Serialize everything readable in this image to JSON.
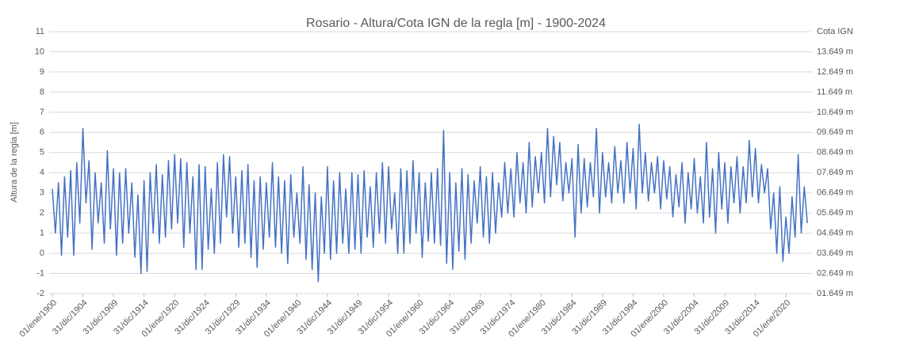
{
  "chart_data": {
    "type": "line",
    "title": "Rosario - Altura/Cota IGN de la regla [m] - 1900-2024",
    "ylabel": "Altura de la regla [m]",
    "y2label": "Cota IGN",
    "color": "#4472c4",
    "grid": true,
    "xlim": [
      1900,
      2024
    ],
    "xticks": [
      {
        "value": 1900,
        "label": "01/ene/1900"
      },
      {
        "value": 1905,
        "label": "31/dic/1904"
      },
      {
        "value": 1910,
        "label": "31/dic/1909"
      },
      {
        "value": 1915,
        "label": "31/dic/1914"
      },
      {
        "value": 1920,
        "label": "01/ene/1920"
      },
      {
        "value": 1925,
        "label": "31/dic/1924"
      },
      {
        "value": 1930,
        "label": "31/dic/1929"
      },
      {
        "value": 1935,
        "label": "31/dic/1934"
      },
      {
        "value": 1940,
        "label": "01/ene/1940"
      },
      {
        "value": 1945,
        "label": "31/dic/1944"
      },
      {
        "value": 1950,
        "label": "31/dic/1949"
      },
      {
        "value": 1955,
        "label": "31/dic/1954"
      },
      {
        "value": 1960,
        "label": "01/ene/1960"
      },
      {
        "value": 1965,
        "label": "31/dic/1964"
      },
      {
        "value": 1970,
        "label": "31/dic/1969"
      },
      {
        "value": 1975,
        "label": "31/dic/1974"
      },
      {
        "value": 1980,
        "label": "01/ene/1980"
      },
      {
        "value": 1985,
        "label": "31/dic/1984"
      },
      {
        "value": 1990,
        "label": "31/dic/1989"
      },
      {
        "value": 1995,
        "label": "31/dic/1994"
      },
      {
        "value": 2000,
        "label": "01/ene/2000"
      },
      {
        "value": 2005,
        "label": "31/dic/2004"
      },
      {
        "value": 2010,
        "label": "31/dic/2009"
      },
      {
        "value": 2015,
        "label": "31/dic/2014"
      },
      {
        "value": 2020,
        "label": "01/ene/2020"
      }
    ],
    "ylim": [
      -2,
      11
    ],
    "yticks": [
      -2,
      -1,
      0,
      1,
      2,
      3,
      4,
      5,
      6,
      7,
      8,
      9,
      10,
      11
    ],
    "y2lim": [
      1.649,
      14.649
    ],
    "y2ticks": [
      {
        "value": 1.649,
        "label": "01.649 m"
      },
      {
        "value": 2.649,
        "label": "02.649 m"
      },
      {
        "value": 3.649,
        "label": "03.649 m"
      },
      {
        "value": 4.649,
        "label": "04.649 m"
      },
      {
        "value": 5.649,
        "label": "05.649 m"
      },
      {
        "value": 6.649,
        "label": "06.649 m"
      },
      {
        "value": 7.649,
        "label": "07.649 m"
      },
      {
        "value": 8.649,
        "label": "08.649 m"
      },
      {
        "value": 9.649,
        "label": "09.649 m"
      },
      {
        "value": 10.649,
        "label": "10.649 m"
      },
      {
        "value": 11.649,
        "label": "11.649 m"
      },
      {
        "value": 12.649,
        "label": "12.649 m"
      },
      {
        "value": 13.649,
        "label": "13.649 m"
      }
    ],
    "x": [
      1900,
      1900.5,
      1901,
      1901.5,
      1902,
      1902.5,
      1903,
      1903.5,
      1904,
      1904.5,
      1905,
      1905.5,
      1906,
      1906.5,
      1907,
      1907.5,
      1908,
      1908.5,
      1909,
      1909.5,
      1910,
      1910.5,
      1911,
      1911.5,
      1912,
      1912.5,
      1913,
      1913.5,
      1914,
      1914.5,
      1915,
      1915.5,
      1916,
      1916.5,
      1917,
      1917.5,
      1918,
      1918.5,
      1919,
      1919.5,
      1920,
      1920.5,
      1921,
      1921.5,
      1922,
      1922.5,
      1923,
      1923.5,
      1924,
      1924.5,
      1925,
      1925.5,
      1926,
      1926.5,
      1927,
      1927.5,
      1928,
      1928.5,
      1929,
      1929.5,
      1930,
      1930.5,
      1931,
      1931.5,
      1932,
      1932.5,
      1933,
      1933.5,
      1934,
      1934.5,
      1935,
      1935.5,
      1936,
      1936.5,
      1937,
      1937.5,
      1938,
      1938.5,
      1939,
      1939.5,
      1940,
      1940.5,
      1941,
      1941.5,
      1942,
      1942.5,
      1943,
      1943.5,
      1944,
      1944.5,
      1945,
      1945.5,
      1946,
      1946.5,
      1947,
      1947.5,
      1948,
      1948.5,
      1949,
      1949.5,
      1950,
      1950.5,
      1951,
      1951.5,
      1952,
      1952.5,
      1953,
      1953.5,
      1954,
      1954.5,
      1955,
      1955.5,
      1956,
      1956.5,
      1957,
      1957.5,
      1958,
      1958.5,
      1959,
      1959.5,
      1960,
      1960.5,
      1961,
      1961.5,
      1962,
      1962.5,
      1963,
      1963.5,
      1964,
      1964.5,
      1965,
      1965.5,
      1966,
      1966.5,
      1967,
      1967.5,
      1968,
      1968.5,
      1969,
      1969.5,
      1970,
      1970.5,
      1971,
      1971.5,
      1972,
      1972.5,
      1973,
      1973.5,
      1974,
      1974.5,
      1975,
      1975.5,
      1976,
      1976.5,
      1977,
      1977.5,
      1978,
      1978.5,
      1979,
      1979.5,
      1980,
      1980.5,
      1981,
      1981.5,
      1982,
      1982.5,
      1983,
      1983.5,
      1984,
      1984.5,
      1985,
      1985.5,
      1986,
      1986.5,
      1987,
      1987.5,
      1988,
      1988.5,
      1989,
      1989.5,
      1990,
      1990.5,
      1991,
      1991.5,
      1992,
      1992.5,
      1993,
      1993.5,
      1994,
      1994.5,
      1995,
      1995.5,
      1996,
      1996.5,
      1997,
      1997.5,
      1998,
      1998.5,
      1999,
      1999.5,
      2000,
      2000.5,
      2001,
      2001.5,
      2002,
      2002.5,
      2003,
      2003.5,
      2004,
      2004.5,
      2005,
      2005.5,
      2006,
      2006.5,
      2007,
      2007.5,
      2008,
      2008.5,
      2009,
      2009.5,
      2010,
      2010.5,
      2011,
      2011.5,
      2012,
      2012.5,
      2013,
      2013.5,
      2014,
      2014.5,
      2015,
      2015.5,
      2016,
      2016.5,
      2017,
      2017.5,
      2018,
      2018.5,
      2019,
      2019.5,
      2020,
      2020.5,
      2021,
      2021.5,
      2022,
      2022.5,
      2023,
      2023.5
    ],
    "values": [
      3.2,
      1.0,
      3.5,
      -0.1,
      3.8,
      0.8,
      4.1,
      -0.1,
      4.5,
      1.5,
      6.2,
      2.5,
      4.6,
      0.2,
      4.0,
      1.5,
      3.5,
      0.5,
      5.1,
      1.2,
      4.2,
      -0.1,
      4.0,
      0.5,
      4.2,
      1.0,
      3.5,
      -0.2,
      2.9,
      -1.0,
      3.6,
      -0.9,
      4.0,
      1.0,
      4.4,
      0.5,
      3.9,
      0.8,
      4.6,
      1.2,
      4.9,
      1.5,
      4.7,
      0.3,
      4.5,
      1.0,
      3.8,
      -0.8,
      4.4,
      -0.8,
      4.3,
      0.2,
      3.2,
      0.0,
      4.5,
      0.5,
      4.9,
      1.8,
      4.8,
      1.0,
      3.8,
      0.3,
      4.1,
      0.5,
      4.4,
      -0.2,
      3.6,
      -0.7,
      3.8,
      0.2,
      3.5,
      0.8,
      4.5,
      0.3,
      3.8,
      0.0,
      3.6,
      -0.5,
      3.9,
      0.8,
      3.0,
      0.5,
      4.3,
      -0.3,
      3.4,
      -0.8,
      3.0,
      -1.4,
      2.8,
      0.0,
      4.3,
      -0.3,
      3.6,
      0.0,
      4.0,
      0.5,
      3.2,
      0.0,
      4.0,
      0.2,
      3.9,
      0.0,
      4.1,
      0.8,
      3.3,
      0.3,
      4.0,
      1.0,
      4.5,
      0.5,
      4.3,
      1.2,
      3.0,
      0.0,
      4.2,
      0.0,
      4.1,
      0.5,
      4.6,
      1.0,
      4.0,
      -0.2,
      3.5,
      0.6,
      4.0,
      0.5,
      4.2,
      0.4,
      6.1,
      -0.5,
      4.0,
      -0.8,
      3.5,
      0.1,
      4.2,
      -0.3,
      3.9,
      0.5,
      3.6,
      1.5,
      4.3,
      0.8,
      3.8,
      0.5,
      4.0,
      1.0,
      3.5,
      1.8,
      4.5,
      2.0,
      4.2,
      1.8,
      5.0,
      2.5,
      4.5,
      2.0,
      5.5,
      2.3,
      4.8,
      3.0,
      5.0,
      2.5,
      6.2,
      2.8,
      5.8,
      3.4,
      5.5,
      2.6,
      4.5,
      3.0,
      4.7,
      0.8,
      5.4,
      2.0,
      4.7,
      2.3,
      4.5,
      2.8,
      6.2,
      2.0,
      5.0,
      2.8,
      4.5,
      2.5,
      5.3,
      3.0,
      4.6,
      2.5,
      5.5,
      3.0,
      5.2,
      2.2,
      6.4,
      3.0,
      5.0,
      2.6,
      4.5,
      3.0,
      4.8,
      2.2,
      4.6,
      2.7,
      4.3,
      1.8,
      3.9,
      2.3,
      4.5,
      1.5,
      4.0,
      2.2,
      4.7,
      2.0,
      3.8,
      1.5,
      5.5,
      1.8,
      4.2,
      1.0,
      5.0,
      2.2,
      4.5,
      1.5,
      4.3,
      2.5,
      4.8,
      2.0,
      4.3,
      2.5,
      5.6,
      2.8,
      5.2,
      2.5,
      4.4,
      3.0,
      4.2,
      1.2,
      3.0,
      0.0,
      3.3,
      -0.4,
      1.8,
      0.0,
      2.8,
      0.8,
      4.9,
      1.0,
      3.3,
      1.5
    ]
  }
}
